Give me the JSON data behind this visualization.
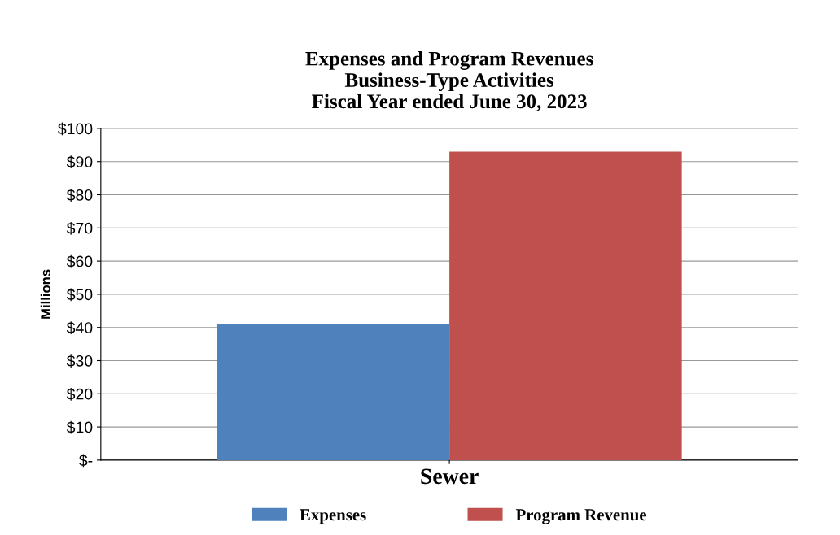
{
  "chart_data": {
    "type": "bar",
    "title": "Expenses and Program Revenues\nBusiness-Type Activities\nFiscal Year ended June 30, 2023",
    "ylabel": "Millions",
    "categories": [
      "Sewer"
    ],
    "series": [
      {
        "name": "Expenses",
        "color": "#4f81bd",
        "values": [
          41
        ]
      },
      {
        "name": "Program Revenue",
        "color": "#c0504d",
        "values": [
          93
        ]
      }
    ],
    "ylim": [
      0,
      100
    ],
    "yticks": [
      {
        "value": 0,
        "label": "$-"
      },
      {
        "value": 10,
        "label": "$10"
      },
      {
        "value": 20,
        "label": "$20"
      },
      {
        "value": 30,
        "label": "$30"
      },
      {
        "value": 40,
        "label": "$40"
      },
      {
        "value": 50,
        "label": "$50"
      },
      {
        "value": 60,
        "label": "$60"
      },
      {
        "value": 70,
        "label": "$70"
      },
      {
        "value": 80,
        "label": "$80"
      },
      {
        "value": 90,
        "label": "$90"
      },
      {
        "value": 100,
        "label": "$100"
      }
    ],
    "grid": "y",
    "legend": "bottom"
  }
}
